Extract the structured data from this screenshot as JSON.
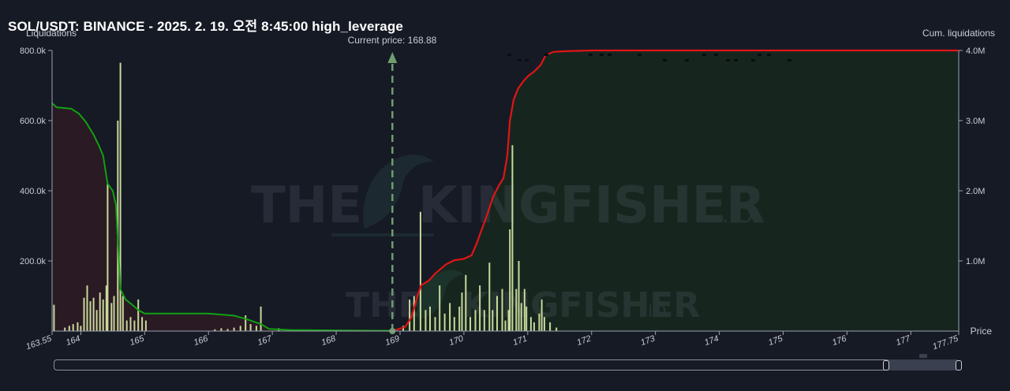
{
  "title": "SOL/USDT: BINANCE - 2025. 2. 19. 오전 8:45:00 high_leverage",
  "watermark": {
    "brand": "THE KINGFISHER",
    "suffix": ".IO"
  },
  "colors": {
    "background": "#161a25",
    "long_fill": "#2a1a24",
    "short_fill": "#16261f",
    "long_cum_line": "#12a012",
    "short_cum_line": "#e01515",
    "bars": "#c8d89a",
    "price_marker": "#6f9e6f"
  },
  "chart_data": {
    "type": "bar",
    "title": "SOL/USDT: BINANCE - 2025. 2. 19. 오전 8:45:00 high_leverage",
    "xlabel": "Price",
    "ylabel_left": "Liquidations",
    "ylabel_right": "Cum. liquidations",
    "xlim": [
      163.55,
      177.75
    ],
    "ylim_left": [
      0,
      800000
    ],
    "ylim_right": [
      0,
      4000000
    ],
    "x_ticks": [
      "163.55",
      "164",
      "165",
      "166",
      "167",
      "168",
      "169",
      "170",
      "171",
      "172",
      "173",
      "174",
      "175",
      "176",
      "177",
      "177.75"
    ],
    "x_tick_values": [
      163.55,
      164,
      165,
      166,
      167,
      168,
      169,
      170,
      171,
      172,
      173,
      174,
      175,
      176,
      177,
      177.75
    ],
    "y_ticks_left": [
      "800.0k",
      "600.0k",
      "400.0k",
      "200.0k"
    ],
    "y_tick_values_left": [
      800000,
      600000,
      400000,
      200000
    ],
    "y_ticks_right": [
      "4.0M",
      "3.0M",
      "2.0M",
      "1.0M"
    ],
    "y_tick_values_right": [
      4000000,
      3000000,
      2000000,
      1000000
    ],
    "current_price": 168.88,
    "current_price_label": "Current price: 168.88",
    "grid": false,
    "bars": [
      [
        163.58,
        75000
      ],
      [
        163.75,
        10000
      ],
      [
        163.82,
        15000
      ],
      [
        163.88,
        20000
      ],
      [
        163.95,
        25000
      ],
      [
        164.0,
        15000
      ],
      [
        164.05,
        95000
      ],
      [
        164.1,
        130000
      ],
      [
        164.15,
        85000
      ],
      [
        164.2,
        95000
      ],
      [
        164.25,
        60000
      ],
      [
        164.3,
        110000
      ],
      [
        164.35,
        90000
      ],
      [
        164.4,
        130000
      ],
      [
        164.42,
        420000
      ],
      [
        164.48,
        80000
      ],
      [
        164.52,
        100000
      ],
      [
        164.58,
        600000
      ],
      [
        164.62,
        765000
      ],
      [
        164.66,
        100000
      ],
      [
        164.72,
        30000
      ],
      [
        164.78,
        40000
      ],
      [
        164.84,
        30000
      ],
      [
        164.9,
        90000
      ],
      [
        164.96,
        40000
      ],
      [
        165.02,
        30000
      ],
      [
        166.1,
        5000
      ],
      [
        166.2,
        8000
      ],
      [
        166.3,
        6000
      ],
      [
        166.4,
        10000
      ],
      [
        166.5,
        15000
      ],
      [
        166.58,
        45000
      ],
      [
        166.66,
        20000
      ],
      [
        166.75,
        15000
      ],
      [
        166.82,
        70000
      ],
      [
        167.1,
        8000
      ],
      [
        169.05,
        15000
      ],
      [
        169.15,
        90000
      ],
      [
        169.22,
        100000
      ],
      [
        169.32,
        340000
      ],
      [
        169.4,
        60000
      ],
      [
        169.47,
        70000
      ],
      [
        169.55,
        40000
      ],
      [
        169.62,
        130000
      ],
      [
        169.7,
        50000
      ],
      [
        169.78,
        80000
      ],
      [
        169.85,
        40000
      ],
      [
        169.93,
        70000
      ],
      [
        169.97,
        110000
      ],
      [
        170.03,
        160000
      ],
      [
        170.1,
        40000
      ],
      [
        170.18,
        60000
      ],
      [
        170.25,
        130000
      ],
      [
        170.32,
        60000
      ],
      [
        170.4,
        195000
      ],
      [
        170.45,
        60000
      ],
      [
        170.52,
        100000
      ],
      [
        170.6,
        120000
      ],
      [
        170.65,
        30000
      ],
      [
        170.7,
        60000
      ],
      [
        170.72,
        290000
      ],
      [
        170.76,
        530000
      ],
      [
        170.82,
        120000
      ],
      [
        170.86,
        200000
      ],
      [
        170.9,
        80000
      ],
      [
        170.95,
        120000
      ],
      [
        170.98,
        70000
      ],
      [
        171.05,
        40000
      ],
      [
        171.1,
        25000
      ],
      [
        171.18,
        50000
      ],
      [
        171.22,
        90000
      ],
      [
        171.26,
        40000
      ],
      [
        171.35,
        25000
      ],
      [
        171.45,
        10000
      ]
    ],
    "series": [
      {
        "axis": "right",
        "values": [
          [
            163.55,
            3250000
          ],
          [
            163.62,
            3190000
          ],
          [
            163.85,
            3170000
          ],
          [
            163.97,
            3100000
          ],
          [
            164.08,
            2980000
          ],
          [
            164.2,
            2800000
          ],
          [
            164.28,
            2650000
          ],
          [
            164.35,
            2500000
          ],
          [
            164.42,
            2100000
          ],
          [
            164.5,
            2000000
          ],
          [
            164.55,
            1800000
          ],
          [
            164.62,
            600000
          ],
          [
            164.7,
            450000
          ],
          [
            164.8,
            380000
          ],
          [
            164.9,
            300000
          ],
          [
            165.0,
            250000
          ],
          [
            165.5,
            250000
          ],
          [
            166.0,
            250000
          ],
          [
            166.4,
            220000
          ],
          [
            166.6,
            170000
          ],
          [
            166.82,
            100000
          ],
          [
            166.95,
            30000
          ],
          [
            167.3,
            15000
          ],
          [
            168.0,
            10000
          ],
          [
            168.88,
            5000
          ]
        ]
      },
      {
        "axis": "right",
        "values": [
          [
            168.88,
            0
          ],
          [
            169.08,
            60000
          ],
          [
            169.18,
            200000
          ],
          [
            169.28,
            520000
          ],
          [
            169.33,
            650000
          ],
          [
            169.45,
            720000
          ],
          [
            169.55,
            820000
          ],
          [
            169.72,
            950000
          ],
          [
            169.85,
            1010000
          ],
          [
            170.0,
            1030000
          ],
          [
            170.12,
            1080000
          ],
          [
            170.2,
            1250000
          ],
          [
            170.3,
            1500000
          ],
          [
            170.38,
            1700000
          ],
          [
            170.45,
            1900000
          ],
          [
            170.55,
            2080000
          ],
          [
            170.62,
            2180000
          ],
          [
            170.68,
            2500000
          ],
          [
            170.72,
            3000000
          ],
          [
            170.78,
            3300000
          ],
          [
            170.85,
            3460000
          ],
          [
            170.93,
            3560000
          ],
          [
            171.0,
            3630000
          ],
          [
            171.1,
            3700000
          ],
          [
            171.2,
            3790000
          ],
          [
            171.28,
            3930000
          ],
          [
            171.4,
            3980000
          ],
          [
            171.6,
            3990000
          ],
          [
            172.0,
            4000000
          ],
          [
            177.75,
            4000000
          ]
        ]
      }
    ]
  }
}
